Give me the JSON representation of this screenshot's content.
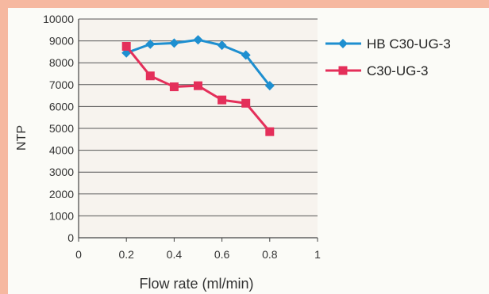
{
  "chart_data": {
    "type": "line",
    "title": "",
    "xlabel": "Flow rate (ml/min)",
    "ylabel": "NTP",
    "xlim": [
      0,
      1
    ],
    "ylim": [
      0,
      10000
    ],
    "x_ticks": [
      "0",
      "0.2",
      "0.4",
      "0.6",
      "0.8",
      "1"
    ],
    "y_ticks": [
      "0",
      "1000",
      "2000",
      "3000",
      "4000",
      "5000",
      "6000",
      "7000",
      "8000",
      "9000",
      "10000"
    ],
    "grid": true,
    "legend_position": "right",
    "series": [
      {
        "name": "HB C30-UG-3",
        "color": "#1e8fd0",
        "marker": "diamond",
        "x": [
          0.2,
          0.3,
          0.4,
          0.5,
          0.6,
          0.7,
          0.8
        ],
        "y": [
          8450,
          8850,
          8900,
          9050,
          8800,
          8350,
          6950
        ]
      },
      {
        "name": "C30-UG-3",
        "color": "#e42f5a",
        "marker": "square",
        "x": [
          0.2,
          0.3,
          0.4,
          0.5,
          0.6,
          0.7,
          0.8
        ],
        "y": [
          8750,
          7400,
          6900,
          6950,
          6300,
          6150,
          4850
        ]
      }
    ]
  }
}
